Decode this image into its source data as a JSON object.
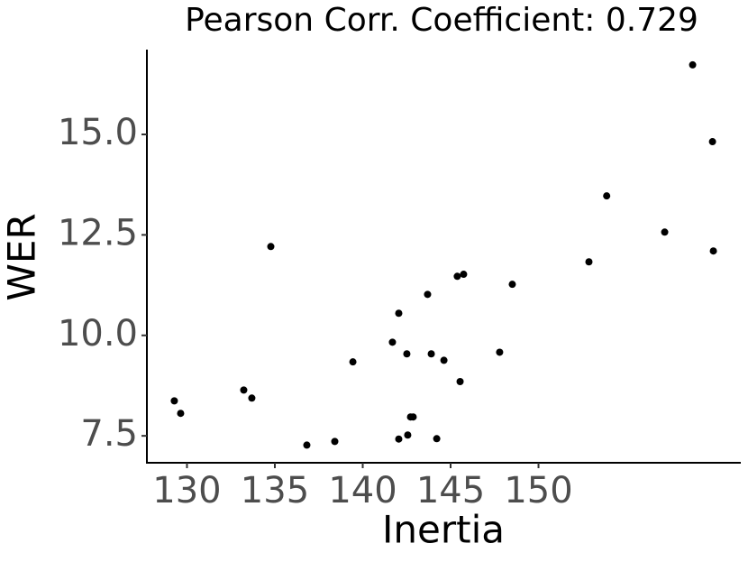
{
  "chart_data": {
    "type": "scatter",
    "title": "Pearson Corr. Coefficient: 0.729",
    "x_label": "Inertia",
    "y_label": "WER",
    "x": [
      158.77,
      159.9,
      153.88,
      157.18,
      159.95,
      152.87,
      145.74,
      145.38,
      148.51,
      143.69,
      134.77,
      142.05,
      141.69,
      142.51,
      143.9,
      147.79,
      144.62,
      139.44,
      145.54,
      133.23,
      133.69,
      129.28,
      129.64,
      142.72,
      142.87,
      136.82,
      138.41,
      142.05,
      142.56,
      144.21
    ],
    "values": [
      16.73,
      14.82,
      13.47,
      12.57,
      12.1,
      11.83,
      11.52,
      11.47,
      11.27,
      11.02,
      12.21,
      10.55,
      9.83,
      9.54,
      9.54,
      9.58,
      9.38,
      9.34,
      8.85,
      8.64,
      8.44,
      8.37,
      8.06,
      7.97,
      7.97,
      7.27,
      7.36,
      7.42,
      7.52,
      7.43
    ],
    "color": "#000000",
    "xlim": [
      127.72,
      161.51
    ],
    "ylim": [
      6.83,
      17.11
    ],
    "xticks": [
      130,
      135,
      140,
      145,
      150
    ],
    "yticks": [
      {
        "value": 7.5,
        "label": "7.5"
      },
      {
        "value": 10,
        "label": "10.0"
      },
      {
        "value": 12.5,
        "label": "12.5"
      },
      {
        "value": 15,
        "label": "15.0"
      }
    ]
  }
}
